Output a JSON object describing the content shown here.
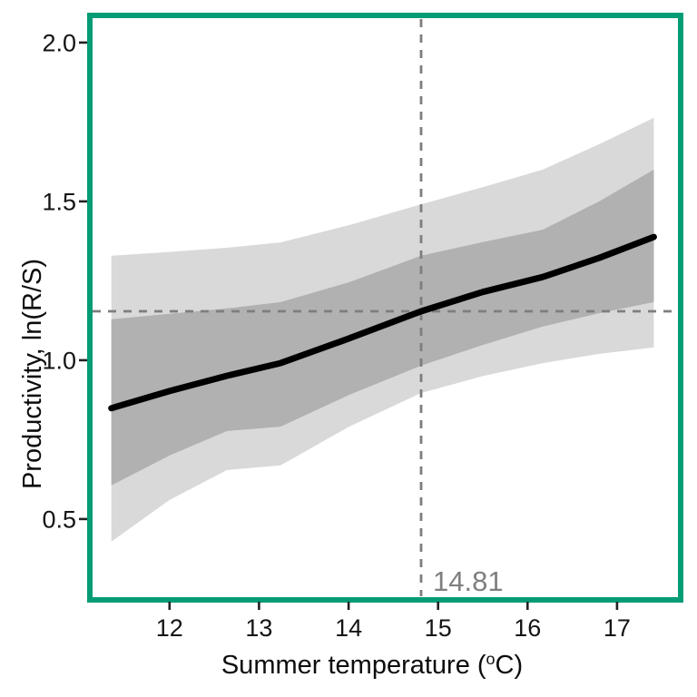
{
  "figure": {
    "background": "#ffffff",
    "border_color": "#049c75"
  },
  "chart_data": {
    "type": "line",
    "title": "",
    "xlabel": "Summer temperature (°C)",
    "xlabel_parts": {
      "pre": "Summer temperature (",
      "sup": "o",
      "post": "C)"
    },
    "ylabel": "Productivity, ln(R/S)",
    "xlim": [
      11.14,
      17.69
    ],
    "ylim": [
      0.257,
      2.074
    ],
    "grid": "off",
    "legend": "none",
    "x_ticks": [
      12,
      13,
      14,
      15,
      16,
      17
    ],
    "x_tick_labels": [
      "12",
      "13",
      "14",
      "15",
      "16",
      "17"
    ],
    "y_ticks": [
      0.5,
      1.0,
      1.5,
      2.0
    ],
    "y_tick_labels": [
      "0.5",
      "1.0",
      "1.5",
      "2.0"
    ],
    "reference": {
      "x": 14.81,
      "y": 1.154,
      "label": "14.81",
      "label_color": "#7f7f7f",
      "line_color": "#7e7e7e"
    },
    "series": [
      {
        "name": "fit",
        "x": [
          11.35,
          12.0,
          12.64,
          13.24,
          14.0,
          14.81,
          15.5,
          16.17,
          16.8,
          17.41
        ],
        "values": [
          0.849,
          0.903,
          0.951,
          0.991,
          1.068,
          1.154,
          1.215,
          1.262,
          1.322,
          1.388
        ]
      },
      {
        "name": "inner_band_upper",
        "x": [
          11.35,
          12.0,
          12.64,
          13.24,
          14.0,
          14.81,
          15.5,
          16.17,
          16.8,
          17.41
        ],
        "values": [
          1.129,
          1.146,
          1.163,
          1.183,
          1.245,
          1.329,
          1.372,
          1.411,
          1.5,
          1.6
        ]
      },
      {
        "name": "inner_band_lower",
        "x": [
          11.35,
          12.0,
          12.64,
          13.24,
          14.0,
          14.81,
          15.5,
          16.17,
          16.8,
          17.41
        ],
        "values": [
          0.606,
          0.7,
          0.777,
          0.791,
          0.89,
          0.983,
          1.048,
          1.106,
          1.148,
          1.183
        ]
      },
      {
        "name": "outer_band_upper",
        "x": [
          11.35,
          12.0,
          12.64,
          13.24,
          14.0,
          14.81,
          15.5,
          16.17,
          16.8,
          17.41
        ],
        "values": [
          1.329,
          1.341,
          1.354,
          1.371,
          1.425,
          1.491,
          1.545,
          1.6,
          1.68,
          1.763
        ]
      },
      {
        "name": "outer_band_lower",
        "x": [
          11.35,
          12.0,
          12.64,
          13.24,
          14.0,
          14.81,
          15.5,
          16.17,
          16.8,
          17.41
        ],
        "values": [
          0.429,
          0.56,
          0.654,
          0.669,
          0.79,
          0.897,
          0.95,
          0.991,
          1.02,
          1.04
        ]
      }
    ],
    "colors": {
      "fit_line": "#000000",
      "inner_band": "#b1b1b1",
      "outer_band": "#d9d9d9",
      "tick_mark": "#222222"
    }
  }
}
